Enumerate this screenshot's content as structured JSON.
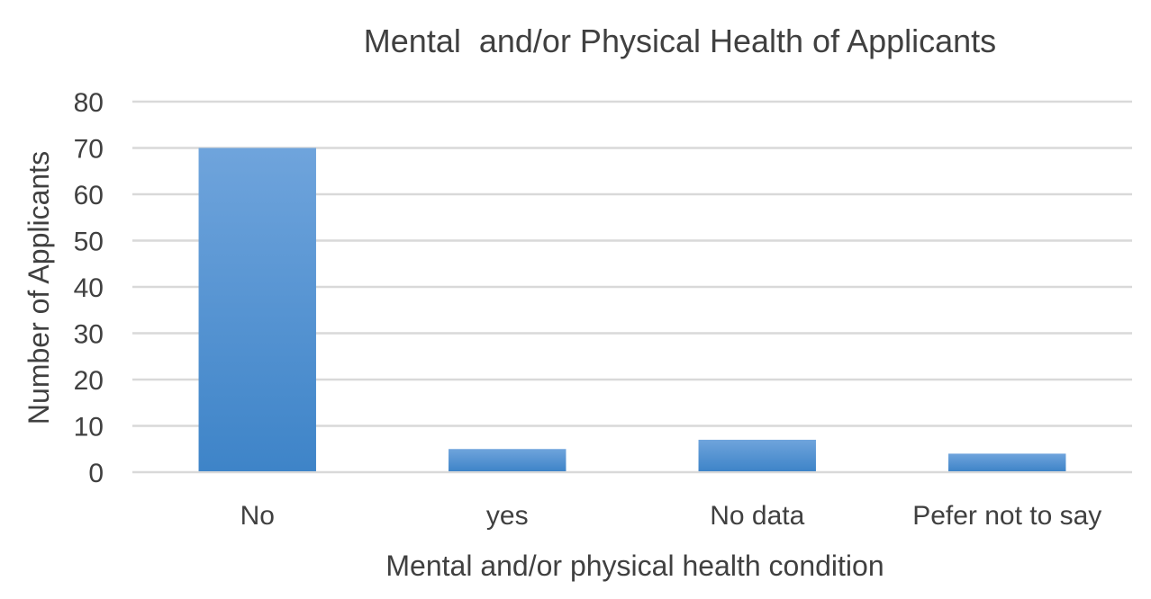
{
  "chart_data": {
    "type": "bar",
    "title": "Mental  and/or Physical Health of Applicants",
    "xlabel": "Mental and/or physical health condition",
    "ylabel": "Number of Applicants",
    "categories": [
      "No",
      "yes",
      "No data",
      "Pefer not to say"
    ],
    "values": [
      70,
      5,
      7,
      4
    ],
    "ylim": [
      0,
      80
    ],
    "yticks": [
      "0",
      "10",
      "20",
      "30",
      "40",
      "50",
      "60",
      "70",
      "80"
    ],
    "grid": true,
    "legend": "none",
    "bar_color_top": "#6fa4dc",
    "bar_color_bottom": "#3e84c8"
  }
}
